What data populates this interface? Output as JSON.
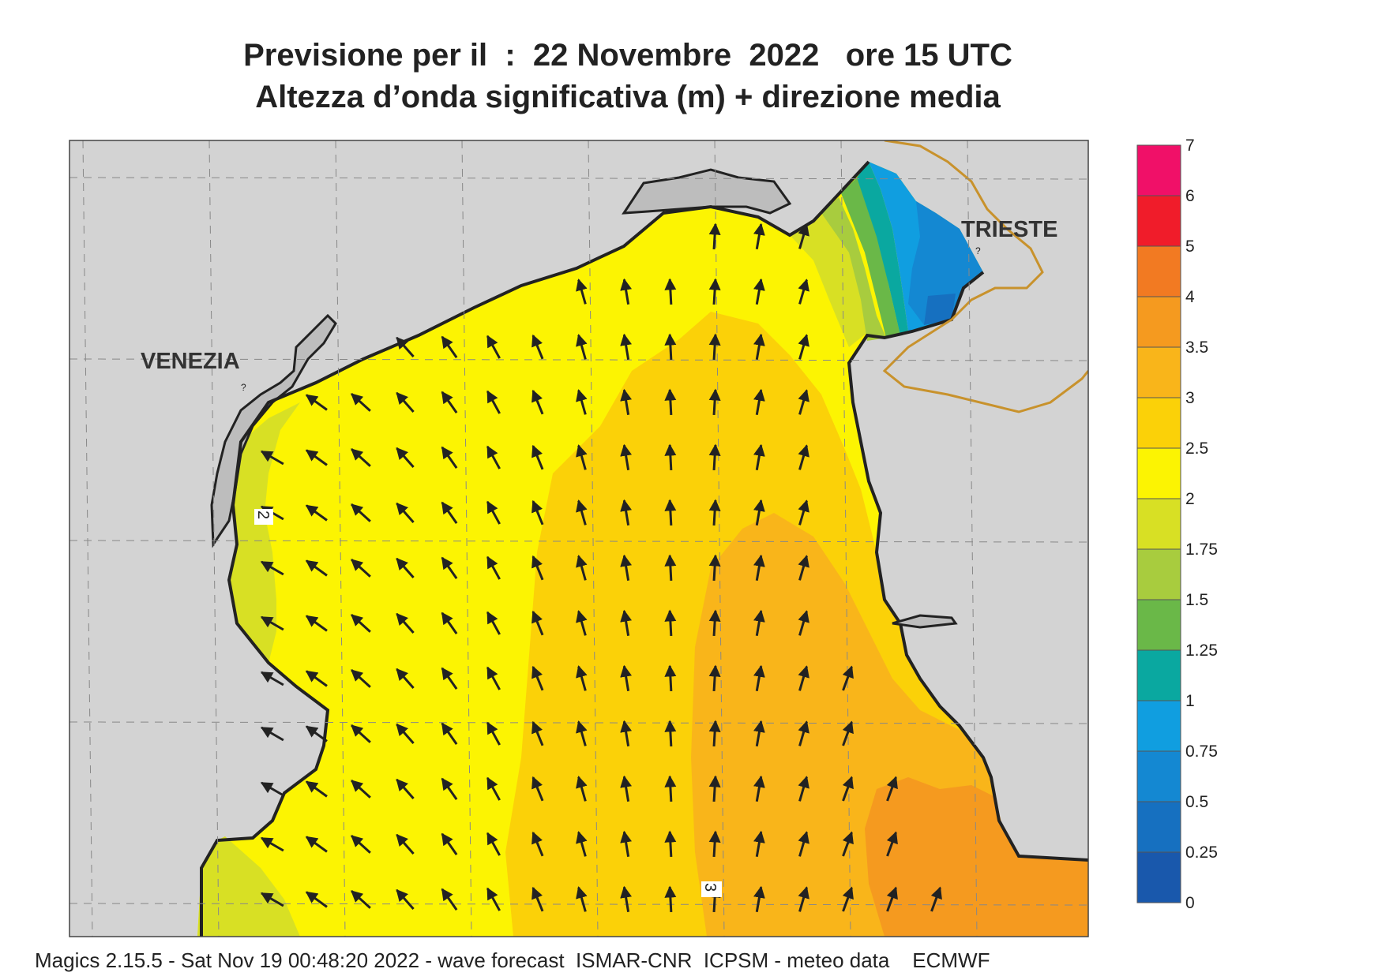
{
  "title_line1": "Previsione per il  :  22 Novembre  2022   ore 15 UTC",
  "title_line2": "Altezza d’onda significativa (m) + direzione media",
  "footer": "Magics 2.15.5 - Sat Nov 19 00:48:20 2022 - wave forecast  ISMAR-CNR  ICPSM - meteo data    ECMWF",
  "cities": {
    "venezia": "VENEZIA",
    "trieste": "TRIESTE"
  },
  "contour_labels": [
    "2",
    "3"
  ],
  "trieste_marker": "?",
  "venezia_marker": "?",
  "scale": {
    "ticks": [
      "7",
      "6",
      "5",
      "4",
      "3.5",
      "3",
      "2.5",
      "2",
      "1.75",
      "1.5",
      "1.25",
      "1",
      "0.75",
      "0.5",
      "0.25",
      "0"
    ],
    "colors": [
      "#f01068",
      "#f01c2a",
      "#f27a22",
      "#f59a1f",
      "#f9b51a",
      "#fbd108",
      "#fcf402",
      "#d8e024",
      "#a8cc3e",
      "#6ab848",
      "#0aa8a0",
      "#109ee0",
      "#1488d2",
      "#1670c0",
      "#1958ac"
    ]
  },
  "colors": {
    "land": "#d3d3d3",
    "coast": "#222222",
    "border": "#c8922c",
    "arrow": "#222222"
  }
}
